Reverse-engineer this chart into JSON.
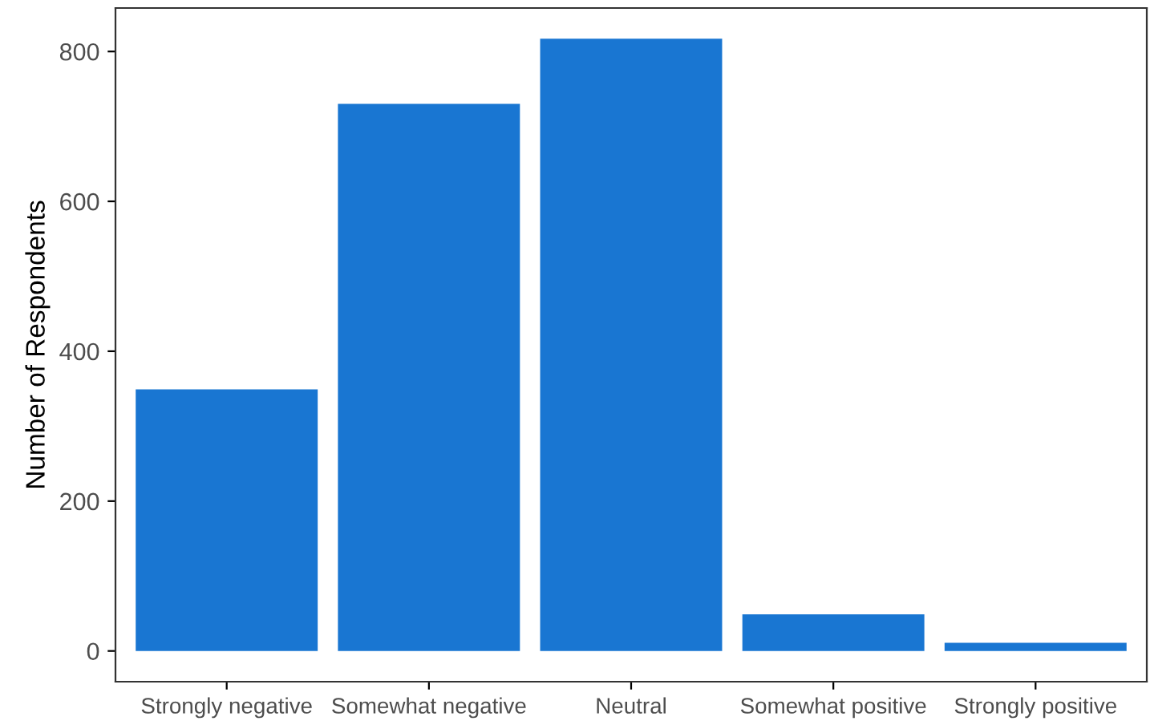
{
  "chart_data": {
    "type": "bar",
    "ylabel": "Number of Respondents",
    "categories": [
      "Strongly negative",
      "Somewhat negative",
      "Neutral",
      "Somewhat positive",
      "Strongly positive"
    ],
    "values": [
      349,
      730,
      817,
      49,
      11
    ],
    "color": "#1976d2",
    "ylim": [
      -41,
      858
    ],
    "yticks": [
      0,
      200,
      400,
      600,
      800
    ],
    "grid": false
  }
}
